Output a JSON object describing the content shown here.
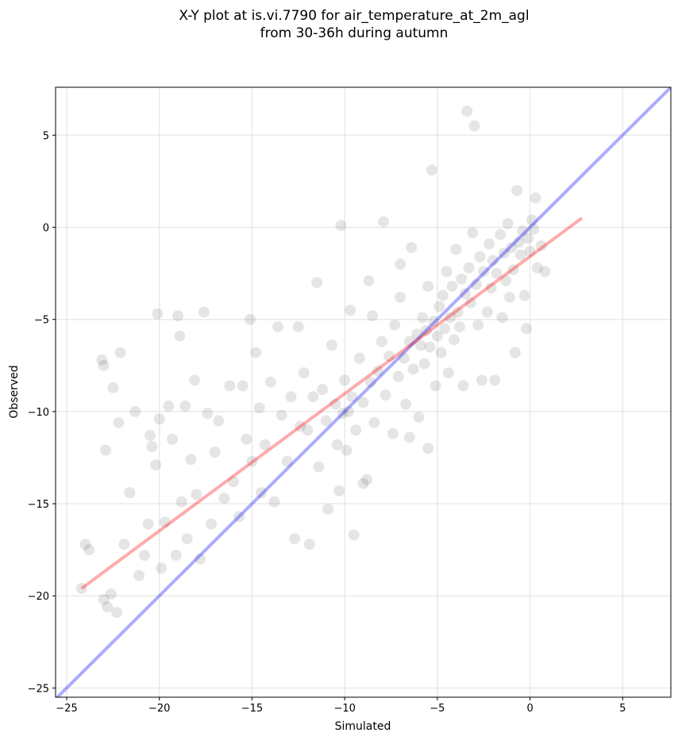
{
  "chart_data": {
    "type": "scatter",
    "title_lines": [
      "X-Y plot at is.vi.7790 for air_temperature_at_2m_agl",
      "from 30-36h during autumn"
    ],
    "xlabel": "Simulated",
    "ylabel": "Observed",
    "xlim": [
      -25.6,
      7.6
    ],
    "ylim": [
      -25.5,
      7.6
    ],
    "xticks": [
      {
        "value": -25,
        "label": "−25"
      },
      {
        "value": -20,
        "label": "−20"
      },
      {
        "value": -15,
        "label": "−15"
      },
      {
        "value": -10,
        "label": "−10"
      },
      {
        "value": -5,
        "label": "−5"
      },
      0,
      5
    ],
    "yticks": [
      {
        "value": -25,
        "label": "−25"
      },
      {
        "value": -20,
        "label": "−20"
      },
      {
        "value": -15,
        "label": "−15"
      },
      {
        "value": -10,
        "label": "−10"
      },
      {
        "value": -5,
        "label": "−5"
      },
      0,
      5
    ],
    "grid": true,
    "color": "#000000",
    "x": [
      -24.2,
      -24,
      -23.8,
      -23.1,
      -23,
      -22.9,
      -23,
      -22.8,
      -22.6,
      -22.3,
      -22.5,
      -22.1,
      -22.2,
      -21.9,
      -21.6,
      -21.3,
      -21.1,
      -20.8,
      -20.6,
      -20.5,
      -20.4,
      -20.2,
      -20.1,
      -20,
      -19.9,
      -19.7,
      -19.5,
      -19.3,
      -19.1,
      -19,
      -18.9,
      -18.8,
      -18.6,
      -18.5,
      -18.3,
      -18.1,
      -18,
      -17.8,
      -17.6,
      -17.4,
      -17.2,
      -17,
      -16.8,
      -16.5,
      -16.2,
      -16,
      -15.7,
      -15.5,
      -15.3,
      -15.1,
      -15,
      -14.8,
      -14.6,
      -14.5,
      -14.3,
      -14,
      -13.8,
      -13.6,
      -13.4,
      -13.1,
      -12.9,
      -12.7,
      -12.5,
      -12.4,
      -12.2,
      -12,
      -11.9,
      -11.7,
      -11.5,
      -11.4,
      -11.2,
      -11,
      -10.9,
      -10.7,
      -10.5,
      -10.4,
      -10.3,
      -10.2,
      -10.1,
      -10,
      -9.9,
      -9.8,
      -9.7,
      -9.6,
      -9.5,
      -9.4,
      -9.2,
      -9,
      -8.8,
      -8.7,
      -8.6,
      -8.4,
      -8.2,
      -8,
      -7.9,
      -7.8,
      -7.6,
      -7.4,
      -7.3,
      -7.1,
      -7,
      -6.8,
      -6.7,
      -6.5,
      -6.4,
      -6.3,
      -6.1,
      -6,
      -5.9,
      -5.8,
      -5.7,
      -5.6,
      -5.5,
      -5.4,
      -5.3,
      -5.2,
      -5.1,
      -5,
      -4.9,
      -4.8,
      -4.7,
      -4.6,
      -4.5,
      -4.4,
      -4.3,
      -4.2,
      -4.1,
      -4,
      -3.9,
      -3.8,
      -3.7,
      -3.6,
      -3.5,
      -3.4,
      -3.3,
      -3.2,
      -3.1,
      -3,
      -2.9,
      -2.8,
      -2.7,
      -2.6,
      -2.5,
      -2.3,
      -2.2,
      -2.1,
      -2,
      -1.9,
      -1.8,
      -1.6,
      -1.5,
      -1.4,
      -1.3,
      -1.2,
      -1.1,
      -1,
      -0.9,
      -0.8,
      -0.7,
      -0.6,
      -0.5,
      -0.4,
      -0.3,
      -0.2,
      -0.1,
      0,
      0.1,
      0.2,
      0.3,
      0.4,
      0.6,
      0.8,
      -6.5,
      -5.5,
      -7,
      -8.5,
      -9
    ],
    "y": [
      -19.6,
      -17.2,
      -17.5,
      -7.2,
      -7.5,
      -12.1,
      -20.2,
      -20.6,
      -19.9,
      -20.9,
      -8.7,
      -6.8,
      -10.6,
      -17.2,
      -14.4,
      -10,
      -18.9,
      -17.8,
      -16.1,
      -11.3,
      -11.9,
      -12.9,
      -4.7,
      -10.4,
      -18.5,
      -16,
      -9.7,
      -11.5,
      -17.8,
      -4.8,
      -5.9,
      -14.9,
      -9.7,
      -16.9,
      -12.6,
      -8.3,
      -14.5,
      -18,
      -4.6,
      -10.1,
      -16.1,
      -12.2,
      -10.5,
      -14.7,
      -8.6,
      -13.8,
      -15.7,
      -8.6,
      -11.5,
      -5,
      -12.7,
      -6.8,
      -9.8,
      -14.4,
      -11.8,
      -8.4,
      -14.9,
      -5.4,
      -10.2,
      -12.7,
      -9.2,
      -16.9,
      -5.4,
      -10.8,
      -7.9,
      -11,
      -17.2,
      -9.2,
      -3,
      -13,
      -8.8,
      -10.5,
      -15.3,
      -6.4,
      -9.6,
      -11.8,
      -14.3,
      0.1,
      -10.1,
      -8.3,
      -12.1,
      -10,
      -4.5,
      -9.2,
      -16.7,
      -11,
      -7.1,
      -9.5,
      -13.7,
      -2.9,
      -8.4,
      -10.6,
      -7.8,
      -6.2,
      0.3,
      -9.1,
      -7,
      -11.2,
      -5.3,
      -8.1,
      -3.8,
      -7.1,
      -9.6,
      -6.2,
      -1.1,
      -7.7,
      -5.8,
      -10.3,
      -6.4,
      -4.9,
      -7.4,
      -5.6,
      -3.2,
      -6.5,
      3.1,
      -5.1,
      -8.6,
      -5.9,
      -4.3,
      -6.8,
      -3.7,
      -5.5,
      -2.4,
      -7.9,
      -4.9,
      -3.2,
      -6.1,
      -1.2,
      -4.6,
      -5.4,
      -2.8,
      -8.6,
      -3.6,
      6.3,
      -2.2,
      -4.1,
      -0.3,
      5.5,
      -3.1,
      -5.3,
      -1.6,
      -8.3,
      -2.4,
      -4.6,
      -0.9,
      -3.3,
      -1.8,
      -8.3,
      -2.5,
      -0.4,
      -4.9,
      -1.4,
      -2.9,
      0.2,
      -3.8,
      -1.1,
      -2.3,
      -6.8,
      2,
      -0.8,
      -1.5,
      -0.2,
      -3.7,
      -5.5,
      -0.6,
      -1.3,
      0.4,
      -0.1,
      1.6,
      -2.2,
      -1,
      -2.4,
      -11.4,
      -12,
      -2,
      -4.8,
      -13.9
    ],
    "lines": [
      {
        "color": "#0000ff",
        "x": [
          -25.6,
          7.6
        ],
        "y": [
          -25.6,
          7.6
        ]
      },
      {
        "color": "#ff0000",
        "x": [
          -24.2,
          2.8
        ],
        "y": [
          -19.6,
          0.5
        ]
      }
    ]
  }
}
